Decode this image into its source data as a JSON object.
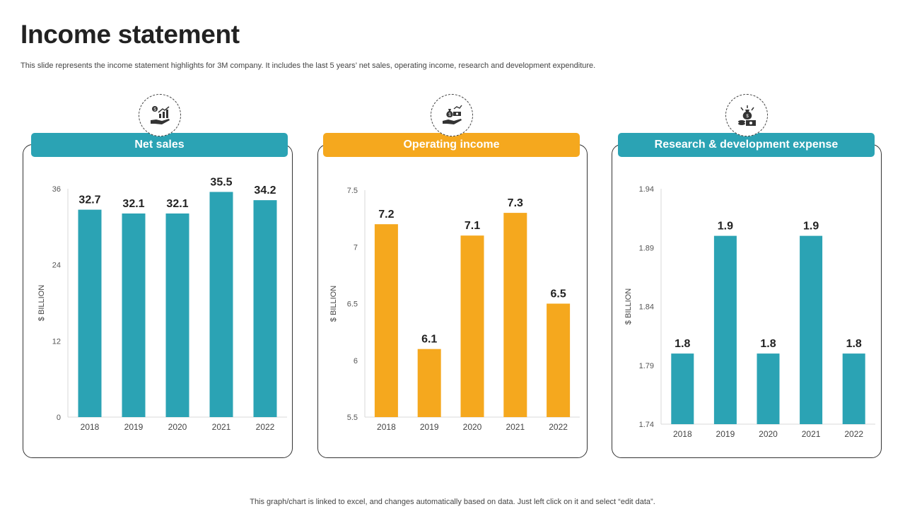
{
  "slide": {
    "title": "Income statement",
    "subtitle": "This slide represents the income statement highlights for 3M company. It includes the last 5 years’ net sales, operating income, research and development expenditure.",
    "footer": "This graph/chart is linked to excel,  and changes automatically based on data. Just left click on it and select “edit data”."
  },
  "panels": [
    {
      "header": "Net sales",
      "color": "#2ba3b4",
      "icon": "money-growth-hand-icon"
    },
    {
      "header": "Operating income",
      "color": "#f5a81e",
      "icon": "money-bag-hand-icon"
    },
    {
      "header": "Research & development expense",
      "color": "#2ba3b4",
      "icon": "money-research-icon"
    }
  ],
  "chart_data": [
    {
      "type": "bar",
      "title": "Net sales",
      "categories": [
        "2018",
        "2019",
        "2020",
        "2021",
        "2022"
      ],
      "values": [
        32.7,
        32.1,
        32.1,
        35.5,
        34.2
      ],
      "labels": [
        "32.7",
        "32.1",
        "32.1",
        "35.5",
        "34.2"
      ],
      "ylabel": "$ BILLION",
      "ylim": [
        0,
        36
      ],
      "yticks": [
        "0",
        "12",
        "24",
        "36"
      ],
      "color": "#2ba3b4"
    },
    {
      "type": "bar",
      "title": "Operating income",
      "categories": [
        "2018",
        "2019",
        "2020",
        "2021",
        "2022"
      ],
      "values": [
        7.2,
        6.1,
        7.1,
        7.3,
        6.5
      ],
      "labels": [
        "7.2",
        "6.1",
        "7.1",
        "7.3",
        "6.5"
      ],
      "ylabel": "$ BILLION",
      "ylim": [
        5.5,
        7.5
      ],
      "yticks": [
        "5.5",
        "6",
        "6.5",
        "7",
        "7.5"
      ],
      "color": "#f5a81e"
    },
    {
      "type": "bar",
      "title": "Research & development expense",
      "categories": [
        "2018",
        "2019",
        "2020",
        "2021",
        "2022"
      ],
      "values": [
        1.8,
        1.9,
        1.8,
        1.9,
        1.8
      ],
      "labels": [
        "1.8",
        "1.9",
        "1.8",
        "1.9",
        "1.8"
      ],
      "ylabel": "$ BILLION",
      "ylim": [
        1.74,
        1.94
      ],
      "yticks": [
        "1.74",
        "1.79",
        "1.84",
        "1.89",
        "1.94"
      ],
      "color": "#2ba3b4"
    }
  ]
}
